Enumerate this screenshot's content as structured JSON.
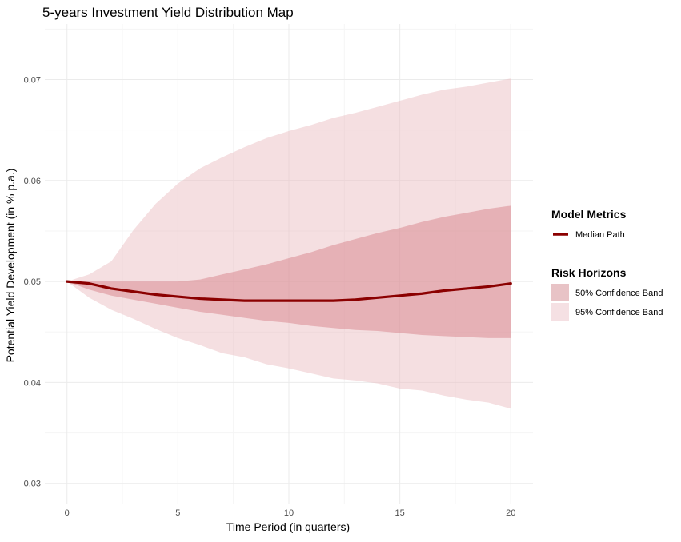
{
  "chart_data": {
    "type": "area",
    "title": "5-years Investment Yield Distribution Map",
    "xlabel": "Time Period (in quarters)",
    "ylabel": "Potential Yield Development (in % p.a.)",
    "xlim": [
      -1,
      21
    ],
    "ylim": [
      0.028,
      0.0755
    ],
    "x_ticks": [
      0,
      5,
      10,
      15,
      20
    ],
    "x_tick_labels": [
      "0",
      "5",
      "10",
      "15",
      "20"
    ],
    "y_ticks": [
      0.03,
      0.04,
      0.05,
      0.06,
      0.07
    ],
    "y_tick_labels": [
      "0.03",
      "0.04",
      "0.05",
      "0.06",
      "0.07"
    ],
    "grid": true,
    "x": [
      0,
      1,
      2,
      3,
      4,
      5,
      6,
      7,
      8,
      9,
      10,
      11,
      12,
      13,
      14,
      15,
      16,
      17,
      18,
      19,
      20
    ],
    "series": [
      {
        "name": "Median Path",
        "kind": "line",
        "color": "#8b0000",
        "values": [
          0.05,
          0.0498,
          0.0493,
          0.049,
          0.0487,
          0.0485,
          0.0483,
          0.0482,
          0.0481,
          0.0481,
          0.0481,
          0.0481,
          0.0481,
          0.0482,
          0.0484,
          0.0486,
          0.0488,
          0.0491,
          0.0493,
          0.0495,
          0.0498
        ]
      },
      {
        "name": "50% Confidence Band",
        "kind": "band",
        "color": "#d47a82",
        "opacity": 0.45,
        "lower": [
          0.05,
          0.0492,
          0.0486,
          0.0482,
          0.0478,
          0.0474,
          0.047,
          0.0467,
          0.0464,
          0.0461,
          0.0459,
          0.0456,
          0.0454,
          0.0452,
          0.0451,
          0.0449,
          0.0447,
          0.0446,
          0.0445,
          0.0444,
          0.0444
        ],
        "upper": [
          0.05,
          0.05,
          0.05,
          0.05,
          0.05,
          0.05,
          0.0502,
          0.0507,
          0.0512,
          0.0517,
          0.0523,
          0.0529,
          0.0536,
          0.0542,
          0.0548,
          0.0553,
          0.0559,
          0.0564,
          0.0568,
          0.0572,
          0.0575
        ]
      },
      {
        "name": "95% Confidence Band",
        "kind": "band",
        "color": "#e9b7bd",
        "opacity": 0.45,
        "lower": [
          0.05,
          0.0484,
          0.0472,
          0.0463,
          0.0453,
          0.0444,
          0.0437,
          0.0429,
          0.0425,
          0.0418,
          0.0414,
          0.0409,
          0.0404,
          0.0402,
          0.0399,
          0.0394,
          0.0392,
          0.0387,
          0.0383,
          0.038,
          0.0374
        ],
        "upper": [
          0.05,
          0.0507,
          0.052,
          0.0551,
          0.0577,
          0.0597,
          0.0612,
          0.0623,
          0.0633,
          0.0642,
          0.0649,
          0.0655,
          0.0662,
          0.0667,
          0.0673,
          0.0679,
          0.0685,
          0.069,
          0.0693,
          0.0697,
          0.0701
        ]
      }
    ],
    "legend": {
      "placement": "right",
      "groups": [
        {
          "title": "Model Metrics",
          "items": [
            "Median Path"
          ]
        },
        {
          "title": "Risk Horizons",
          "items": [
            "50% Confidence Band",
            "95% Confidence Band"
          ]
        }
      ]
    }
  }
}
